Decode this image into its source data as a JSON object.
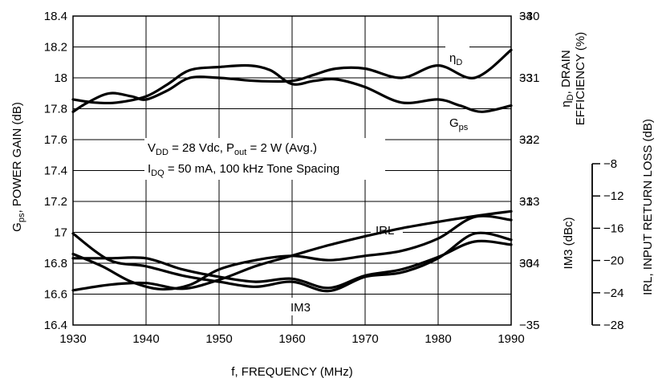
{
  "chart_data": {
    "type": "line",
    "x_axis": {
      "label": "f, FREQUENCY (MHz)",
      "range": [
        1930,
        1990
      ],
      "ticks": [
        "1930",
        "1940",
        "1950",
        "1960",
        "1970",
        "1980",
        "1990"
      ]
    },
    "y_left": {
      "label_main": "G",
      "label_sub": "ps",
      "label_rest": ", POWER GAIN (dB)",
      "range": [
        16.4,
        18.4
      ],
      "ticks": [
        "16.4",
        "16.6",
        "16.8",
        "17",
        "17.2",
        "17.4",
        "17.6",
        "17.8",
        "18",
        "18.2",
        "18.4"
      ]
    },
    "y_eff": {
      "label_line1_main": "η",
      "label_line1_sub": "D",
      "label_line1_rest": ", DRAIN",
      "label_line2": "EFFICIENCY (%)",
      "range": [
        29,
        34
      ],
      "ticks": [
        "30",
        "31",
        "32",
        "33",
        "34"
      ]
    },
    "y_im3": {
      "label": "IM3 (dBc)",
      "range": [
        -35,
        -30
      ],
      "ticks": [
        "-35",
        "-34",
        "-33",
        "-32",
        "-31",
        "-30"
      ]
    },
    "y_irl": {
      "label": "IRL, INPUT RETURN LOSS (dB)",
      "range": [
        -28,
        -8
      ],
      "ticks": [
        "-28",
        "-24",
        "-20",
        "-16",
        "-12",
        "-8"
      ]
    },
    "conditions": {
      "line1": {
        "a": "V",
        "a_sub": "DD",
        "b": " = 28 Vdc, P",
        "b_sub": "out",
        "c": " = 2 W (Avg.)"
      },
      "line2": {
        "a": "I",
        "a_sub": "DQ",
        "b": " = 50 mA, 100 kHz Tone Spacing"
      }
    },
    "series": [
      {
        "name": "ηD",
        "label_main": "η",
        "label_sub": "D",
        "axis": "eff",
        "x": [
          1930,
          1932,
          1935,
          1938,
          1940,
          1943,
          1946,
          1950,
          1955,
          1960,
          1963,
          1966,
          1970,
          1975,
          1980,
          1985,
          1990
        ],
        "y": [
          32.45,
          32.6,
          32.75,
          32.7,
          32.65,
          32.8,
          33.0,
          33.0,
          32.95,
          32.95,
          33.05,
          33.15,
          33.15,
          33.0,
          33.2,
          33.0,
          33.45
        ]
      },
      {
        "name": "Gps",
        "label_main": "G",
        "label_sub": "ps",
        "axis": "gain",
        "x": [
          1930,
          1933,
          1936,
          1940,
          1943,
          1946,
          1950,
          1954,
          1957,
          1960,
          1963,
          1966,
          1970,
          1975,
          1980,
          1983,
          1986,
          1990
        ],
        "y": [
          17.86,
          17.84,
          17.84,
          17.88,
          17.96,
          18.05,
          18.07,
          18.08,
          18.05,
          17.96,
          17.98,
          17.99,
          17.94,
          17.84,
          17.86,
          17.82,
          17.78,
          17.82
        ]
      },
      {
        "name": "IRL",
        "label": "IRL",
        "axis": "irl",
        "x": [
          1930,
          1935,
          1940,
          1945,
          1950,
          1955,
          1960,
          1965,
          1970,
          1975,
          1980,
          1985,
          1990
        ],
        "y": [
          -23.7,
          -23.0,
          -22.8,
          -23.5,
          -22.4,
          -20.7,
          -19.4,
          -18.1,
          -17.0,
          -16.0,
          -15.2,
          -14.5,
          -13.9
        ]
      },
      {
        "name": "IM3",
        "label": "IM3",
        "axis": "im3",
        "x": [
          1930,
          1934,
          1938,
          1942,
          1946,
          1950,
          1955,
          1960,
          1965,
          1970,
          1975,
          1980,
          1985,
          1990
        ],
        "y": [
          -33.85,
          -34.05,
          -34.3,
          -34.42,
          -34.35,
          -34.1,
          -33.95,
          -33.88,
          -33.95,
          -33.88,
          -33.8,
          -33.6,
          -33.25,
          -33.3
        ]
      },
      {
        "name": "IM3 (trace 2)",
        "axis": "im3",
        "x": [
          1930,
          1935,
          1940,
          1945,
          1950,
          1955,
          1960,
          1965,
          1970,
          1975,
          1980,
          1985,
          1990
        ],
        "y": [
          -33.52,
          -33.95,
          -34.05,
          -34.2,
          -34.3,
          -34.38,
          -34.3,
          -34.45,
          -34.22,
          -34.15,
          -33.92,
          -33.52,
          -33.62
        ]
      },
      {
        "name": "IM3 (trace 3)",
        "axis": "im3",
        "x": [
          1930,
          1935,
          1940,
          1945,
          1950,
          1955,
          1960,
          1965,
          1970,
          1975,
          1980,
          1985,
          1990
        ],
        "y": [
          -33.92,
          -33.92,
          -33.92,
          -34.1,
          -34.22,
          -34.3,
          -34.25,
          -34.4,
          -34.2,
          -34.1,
          -33.9,
          -33.65,
          -33.7
        ]
      }
    ]
  }
}
